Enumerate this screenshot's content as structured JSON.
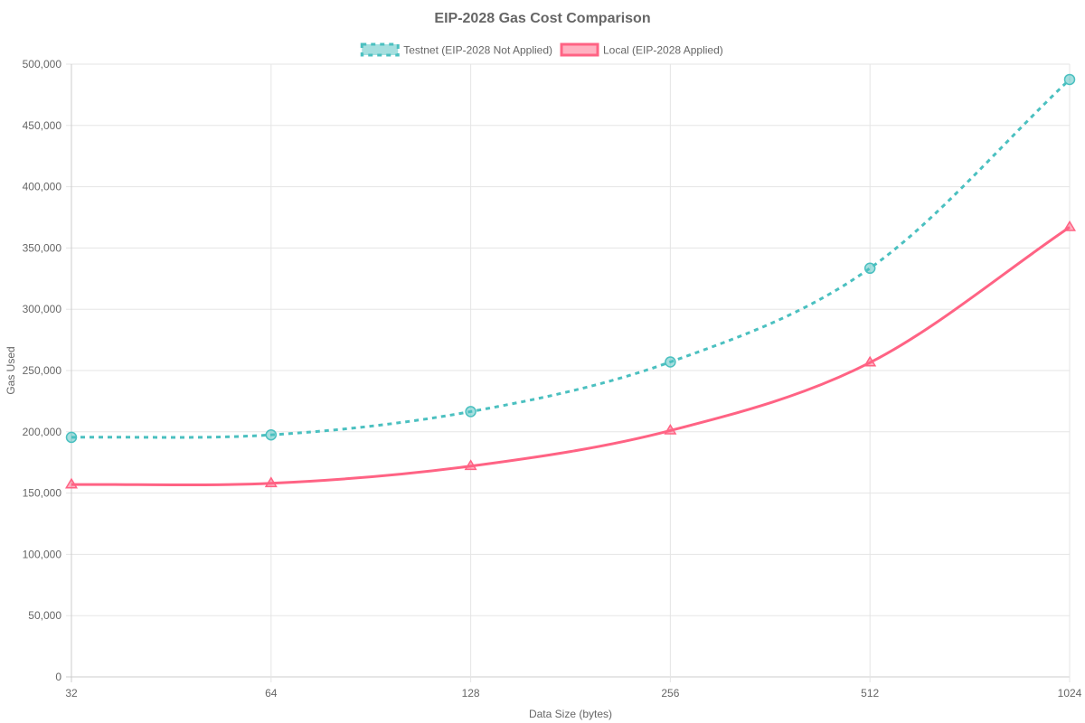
{
  "chart_data": {
    "type": "line",
    "title": "EIP-2028 Gas Cost Comparison",
    "xlabel": "Data Size (bytes)",
    "ylabel": "Gas Used",
    "x": [
      32,
      64,
      128,
      256,
      512,
      1024
    ],
    "x_scale": "log2",
    "ylim": [
      0,
      500000
    ],
    "y_ticks": [
      "0",
      "50,000",
      "100,000",
      "150,000",
      "200,000",
      "250,000",
      "300,000",
      "350,000",
      "400,000",
      "450,000",
      "500,000"
    ],
    "x_ticks": [
      "32",
      "64",
      "128",
      "256",
      "512",
      "1024"
    ],
    "grid": true,
    "legend_position": "top",
    "series": [
      {
        "name": "Testnet (EIP-2028 Not Applied)",
        "values": [
          195500,
          197500,
          216500,
          257000,
          333500,
          487500
        ],
        "color": "#4bc0c0",
        "fill": "rgba(75,192,192,0.5)",
        "line_style": "dashed",
        "marker": "circle"
      },
      {
        "name": "Local (EIP-2028 Applied)",
        "values": [
          157000,
          158000,
          172000,
          201000,
          256500,
          367000
        ],
        "color": "#ff6384",
        "fill": "rgba(255,99,132,0.5)",
        "line_style": "solid",
        "marker": "triangle"
      }
    ]
  }
}
